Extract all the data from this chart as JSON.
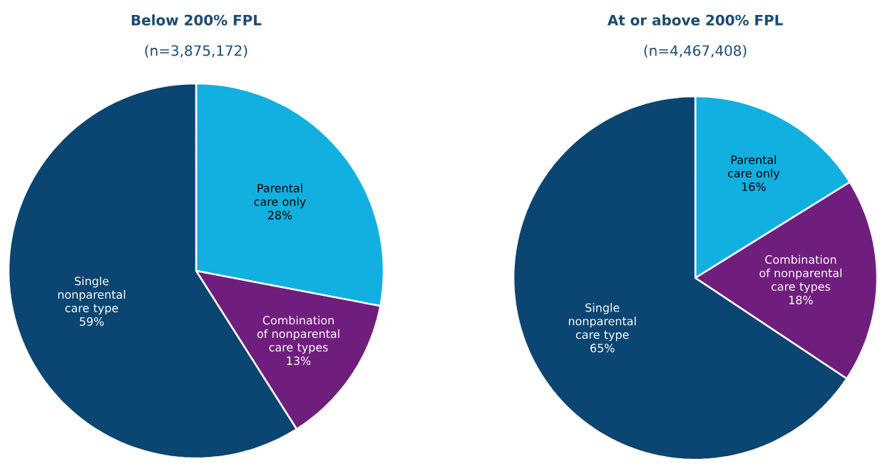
{
  "chart_data": [
    {
      "type": "pie",
      "title": "Below 200% FPL",
      "subtitle": "(n=3,875,172)",
      "categories": [
        "Parental care only",
        "Combination of nonparental care types",
        "Single nonparental care type"
      ],
      "values": [
        28,
        13,
        59
      ],
      "value_labels": [
        "28%",
        "13%",
        "59%"
      ],
      "colors": [
        "#12b0e0",
        "#701e7e",
        "#0b4571"
      ]
    },
    {
      "type": "pie",
      "title": "At or above 200% FPL",
      "subtitle": "(n=4,467,408)",
      "categories": [
        "Parental care only",
        "Combination of nonparental care types",
        "Single nonparental care type"
      ],
      "values": [
        16,
        18,
        65
      ],
      "value_labels": [
        "16%",
        "18%",
        "65%"
      ],
      "colors": [
        "#12b0e0",
        "#701e7e",
        "#0b4571"
      ]
    }
  ]
}
